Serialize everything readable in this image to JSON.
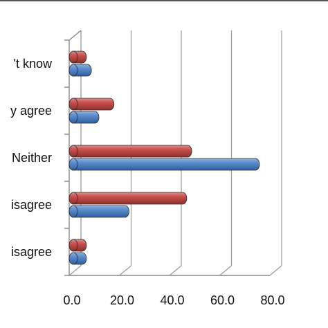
{
  "chart_data": {
    "type": "bar",
    "orientation": "horizontal",
    "style": "3d-cylinder",
    "categories": [
      "isagree",
      "isagree",
      "Neither",
      "y agree",
      "'t know"
    ],
    "series": [
      {
        "values": [
          3,
          20,
          72,
          8,
          5
        ],
        "color": "#4a7ebb"
      },
      {
        "values": [
          3,
          43,
          45,
          14,
          3
        ],
        "color": "#c0504d"
      }
    ],
    "xlim": [
      0,
      80
    ],
    "xticks": [
      "0.0",
      "20.0",
      "40.0",
      "60.0",
      "80.0"
    ],
    "grid": true,
    "legend": "none"
  }
}
